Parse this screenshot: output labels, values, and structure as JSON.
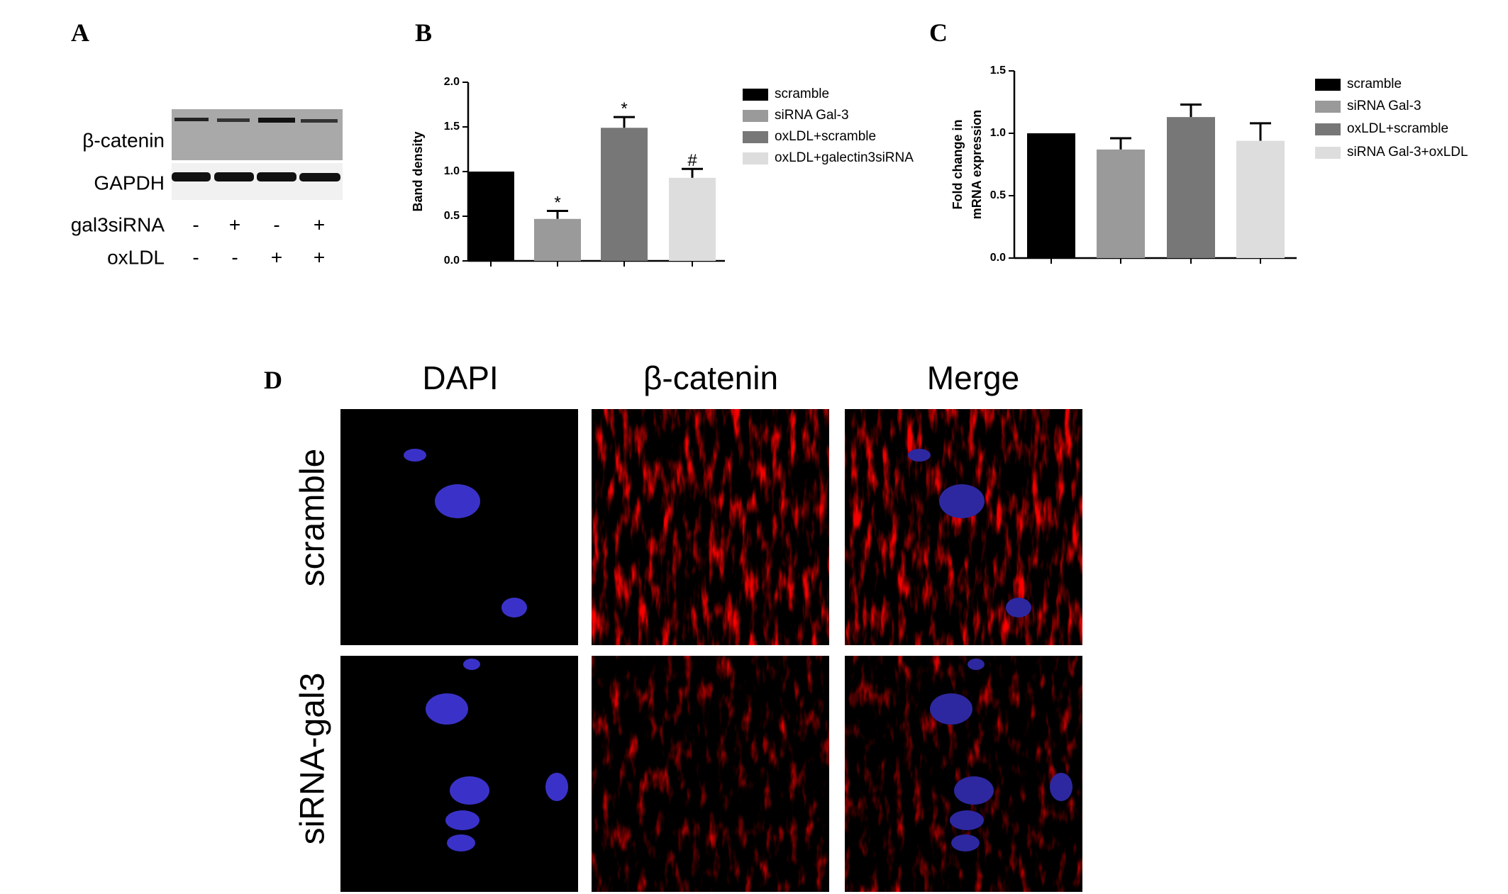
{
  "panel_labels": [
    "A",
    "B",
    "C",
    "D"
  ],
  "blot": {
    "rows": [
      "β-catenin",
      "GAPDH"
    ],
    "conditions": [
      {
        "label": "gal3siRNA",
        "marks": [
          "-",
          "+",
          "-",
          "+"
        ]
      },
      {
        "label": "oxLDL",
        "marks": [
          "-",
          "-",
          "+",
          "+"
        ]
      }
    ]
  },
  "chart_data": [
    {
      "type": "bar",
      "ylabel": [
        "Band density"
      ],
      "categories": [
        null,
        null,
        null,
        null
      ],
      "ylim": [
        0,
        2
      ],
      "yticks": [
        {
          "value": 0,
          "label": "0.0"
        },
        0.5,
        {
          "value": 1,
          "label": "1.0"
        },
        1.5,
        {
          "value": 2,
          "label": "2.0"
        }
      ],
      "series": [
        {
          "name": "scramble",
          "color": "#000000",
          "values": [
            1.0,
            null,
            null,
            null
          ],
          "errors": [
            null,
            null,
            null,
            null
          ]
        },
        {
          "name": "siRNA Gal-3",
          "color": "#9a9a9a",
          "values": [
            null,
            0.47,
            null,
            null
          ],
          "errors": [
            null,
            0.09,
            null,
            null
          ],
          "annotation": "*"
        },
        {
          "name": "oxLDL+scramble",
          "color": "#777777",
          "values": [
            null,
            null,
            1.49,
            null
          ],
          "errors": [
            null,
            null,
            0.12,
            null
          ],
          "annotation": "*"
        },
        {
          "name": "oxLDL+galectin3siRNA",
          "color": "#dddddd",
          "values": [
            null,
            null,
            null,
            0.93
          ],
          "errors": [
            null,
            null,
            null,
            0.1
          ],
          "annotation": "#"
        }
      ]
    },
    {
      "type": "bar",
      "ylabel": [
        "Fold change in",
        "mRNA expression"
      ],
      "categories": [
        null,
        null,
        null,
        null
      ],
      "ylim": [
        0,
        1.5
      ],
      "yticks": [
        {
          "value": 0,
          "label": "0.0"
        },
        0.5,
        {
          "value": 1,
          "label": "1.0"
        },
        1.5
      ],
      "series": [
        {
          "name": "scramble",
          "color": "#000000",
          "values": [
            1.0,
            null,
            null,
            null
          ],
          "errors": [
            null,
            null,
            null,
            null
          ]
        },
        {
          "name": "siRNA Gal-3",
          "color": "#9a9a9a",
          "values": [
            null,
            0.87,
            null,
            null
          ],
          "errors": [
            null,
            0.09,
            null,
            null
          ]
        },
        {
          "name": "oxLDL+scramble",
          "color": "#777777",
          "values": [
            null,
            null,
            1.13,
            null
          ],
          "errors": [
            null,
            null,
            0.1,
            null
          ]
        },
        {
          "name": "siRNA Gal-3+oxLDL",
          "color": "#dddddd",
          "values": [
            null,
            null,
            null,
            0.94
          ],
          "errors": [
            null,
            null,
            null,
            0.14
          ]
        }
      ]
    }
  ],
  "micrographs": {
    "columns": [
      "DAPI",
      "β-catenin",
      "Merge"
    ],
    "rows": [
      "scramble",
      "siRNA-gal3"
    ]
  }
}
